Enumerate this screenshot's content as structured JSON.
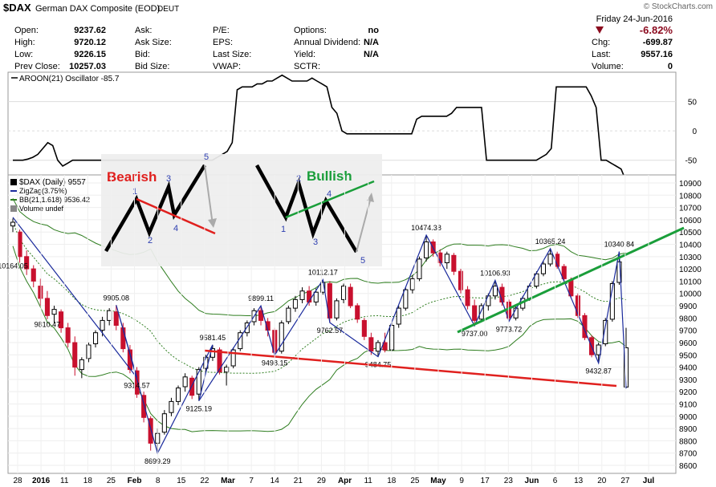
{
  "header": {
    "symbol": "$DAX",
    "name": "German DAX Composite (EOD)",
    "exchange": "DEUT",
    "watermark": "© StockCharts.com",
    "date": "Friday 24-Jun-2016",
    "change_pct": "-6.82%",
    "chg_label": "Chg:",
    "chg_value": "-699.87",
    "last_label": "Last:",
    "last_value": "9557.16",
    "volume_label": "Volume:",
    "volume_value": "0",
    "down_color": "#8b0a1e"
  },
  "quote_fields": [
    {
      "label": "Open:",
      "value": "9237.62"
    },
    {
      "label": "High:",
      "value": "9720.12"
    },
    {
      "label": "Low:",
      "value": "9226.15"
    },
    {
      "label": "Prev Close:",
      "value": "10257.03"
    }
  ],
  "quote_fields_2": [
    {
      "label": "Ask:",
      "value": ""
    },
    {
      "label": "Ask Size:",
      "value": ""
    },
    {
      "label": "Bid:",
      "value": ""
    },
    {
      "label": "Bid Size:",
      "value": ""
    }
  ],
  "quote_fields_3": [
    {
      "label": "P/E:",
      "value": ""
    },
    {
      "label": "EPS:",
      "value": ""
    },
    {
      "label": "Last Size:",
      "value": ""
    },
    {
      "label": "VWAP:",
      "value": ""
    }
  ],
  "quote_fields_4": [
    {
      "label": "Options:",
      "value": "no"
    },
    {
      "label": "Annual Dividend:",
      "value": "N/A"
    },
    {
      "label": "Yield:",
      "value": "N/A"
    },
    {
      "label": "SCTR:",
      "value": ""
    }
  ],
  "chart_data": [
    {
      "type": "line",
      "title": "AROON(21) Oscillator -85.7",
      "ylim": [
        -75,
        100
      ],
      "y_ticks": [
        50,
        0,
        -50
      ],
      "line_color": "#000000",
      "values": [
        -50,
        -50,
        -50,
        -48,
        -45,
        -40,
        -30,
        -20,
        -25,
        -50,
        -60,
        -55,
        -50,
        -50,
        -50,
        -50,
        -50,
        -50,
        -50,
        -50,
        -50,
        -50,
        -50,
        -50,
        -50,
        -50,
        -50,
        -50,
        -50,
        -50,
        -50,
        -50,
        -50,
        -50,
        -50,
        -50,
        -50,
        -50,
        -50,
        -50,
        -50,
        -45,
        -40,
        -35,
        -20,
        70,
        75,
        75,
        75,
        80,
        80,
        85,
        85,
        90,
        95,
        90,
        85,
        85,
        85,
        85,
        90,
        85,
        80,
        75,
        40,
        30,
        0,
        -5,
        -5,
        -5,
        -5,
        -5,
        -5,
        -5,
        -5,
        -5,
        -5,
        -5,
        -5,
        -5,
        -5,
        20,
        25,
        25,
        25,
        25,
        25,
        25,
        30,
        40,
        40,
        40,
        40,
        40,
        40,
        -50,
        -50,
        -50,
        -50,
        -50,
        -50,
        -50,
        -50,
        -50,
        -50,
        -50,
        -45,
        -40,
        -30,
        75,
        75,
        75,
        75,
        75,
        75,
        75,
        60,
        40,
        -50,
        -50,
        -55,
        -60,
        -65,
        -85.7
      ]
    },
    {
      "type": "candlestick",
      "title": "$DAX (Daily) 9557",
      "legend": [
        "ZigZag(3.75%)",
        "BB(21,1.618) 9536.42",
        "Volume undef"
      ],
      "ylim": [
        8600,
        10900
      ],
      "y_ticks": [
        8600,
        8700,
        8800,
        8900,
        9000,
        9100,
        9200,
        9300,
        9400,
        9500,
        9600,
        9700,
        9800,
        9900,
        10000,
        10100,
        10200,
        10300,
        10400,
        10500,
        10600,
        10700,
        10800,
        10900
      ],
      "x_ticks": [
        "28",
        "2016",
        "11",
        "18",
        "25",
        "Feb",
        "8",
        "15",
        "22",
        "Mar",
        "7",
        "14",
        "21",
        "29",
        "Apr",
        "11",
        "18",
        "25",
        "May",
        "9",
        "17",
        "23",
        "Jun",
        "6",
        "13",
        "20",
        "27",
        "Jul"
      ],
      "up_color": "#000000",
      "down_color": "#c8102e",
      "candles": [
        {
          "o": 10550,
          "h": 10610,
          "l": 10500,
          "c": 10580
        },
        {
          "o": 10500,
          "h": 10520,
          "l": 10250,
          "c": 10300
        },
        {
          "o": 10300,
          "h": 10350,
          "l": 10150,
          "c": 10200
        },
        {
          "o": 10200,
          "h": 10230,
          "l": 10050,
          "c": 10100
        },
        {
          "o": 10060,
          "h": 10120,
          "l": 9900,
          "c": 9960
        },
        {
          "o": 9960,
          "h": 10020,
          "l": 9790,
          "c": 9820
        },
        {
          "o": 9830,
          "h": 9900,
          "l": 9760,
          "c": 9870
        },
        {
          "o": 9850,
          "h": 9870,
          "l": 9680,
          "c": 9720
        },
        {
          "o": 9720,
          "h": 9760,
          "l": 9560,
          "c": 9600
        },
        {
          "o": 9600,
          "h": 9650,
          "l": 9330,
          "c": 9400
        },
        {
          "o": 9380,
          "h": 9480,
          "l": 9310,
          "c": 9460
        },
        {
          "o": 9470,
          "h": 9600,
          "l": 9440,
          "c": 9580
        },
        {
          "o": 9590,
          "h": 9700,
          "l": 9560,
          "c": 9680
        },
        {
          "o": 9700,
          "h": 9810,
          "l": 9650,
          "c": 9780
        },
        {
          "o": 9780,
          "h": 9880,
          "l": 9740,
          "c": 9860
        },
        {
          "o": 9850,
          "h": 9905,
          "l": 9700,
          "c": 9740
        },
        {
          "o": 9720,
          "h": 9760,
          "l": 9520,
          "c": 9550
        },
        {
          "o": 9540,
          "h": 9580,
          "l": 9350,
          "c": 9380
        },
        {
          "o": 9370,
          "h": 9400,
          "l": 9150,
          "c": 9180
        },
        {
          "o": 9170,
          "h": 9200,
          "l": 8950,
          "c": 8990
        },
        {
          "o": 8980,
          "h": 9000,
          "l": 8720,
          "c": 8780
        },
        {
          "o": 8780,
          "h": 8900,
          "l": 8699,
          "c": 8860
        },
        {
          "o": 8870,
          "h": 9050,
          "l": 8850,
          "c": 9020
        },
        {
          "o": 9030,
          "h": 9150,
          "l": 9000,
          "c": 9120
        },
        {
          "o": 9120,
          "h": 9250,
          "l": 9090,
          "c": 9230
        },
        {
          "o": 9240,
          "h": 9350,
          "l": 9200,
          "c": 9320
        },
        {
          "o": 9310,
          "h": 9330,
          "l": 9140,
          "c": 9170
        },
        {
          "o": 9180,
          "h": 9400,
          "l": 9125,
          "c": 9380
        },
        {
          "o": 9390,
          "h": 9500,
          "l": 9360,
          "c": 9480
        },
        {
          "o": 9480,
          "h": 9581,
          "l": 9450,
          "c": 9550
        },
        {
          "o": 9540,
          "h": 9560,
          "l": 9340,
          "c": 9360
        },
        {
          "o": 9360,
          "h": 9420,
          "l": 9250,
          "c": 9400
        },
        {
          "o": 9410,
          "h": 9560,
          "l": 9390,
          "c": 9540
        },
        {
          "o": 9550,
          "h": 9700,
          "l": 9530,
          "c": 9680
        },
        {
          "o": 9680,
          "h": 9780,
          "l": 9650,
          "c": 9760
        },
        {
          "o": 9770,
          "h": 9880,
          "l": 9740,
          "c": 9860
        },
        {
          "o": 9860,
          "h": 9899,
          "l": 9740,
          "c": 9780
        },
        {
          "o": 9770,
          "h": 9800,
          "l": 9650,
          "c": 9700
        },
        {
          "o": 9700,
          "h": 9720,
          "l": 9498,
          "c": 9520
        },
        {
          "o": 9530,
          "h": 9780,
          "l": 9510,
          "c": 9760
        },
        {
          "o": 9770,
          "h": 9900,
          "l": 9750,
          "c": 9880
        },
        {
          "o": 9880,
          "h": 9980,
          "l": 9850,
          "c": 9950
        },
        {
          "o": 9950,
          "h": 10050,
          "l": 9920,
          "c": 10020
        },
        {
          "o": 10020,
          "h": 10060,
          "l": 9900,
          "c": 9930
        },
        {
          "o": 9930,
          "h": 10040,
          "l": 9900,
          "c": 10010
        },
        {
          "o": 10010,
          "h": 10112,
          "l": 9990,
          "c": 10090
        },
        {
          "o": 10080,
          "h": 10100,
          "l": 9763,
          "c": 9800
        },
        {
          "o": 9800,
          "h": 9960,
          "l": 9780,
          "c": 9940
        },
        {
          "o": 9950,
          "h": 10080,
          "l": 9920,
          "c": 10060
        },
        {
          "o": 10050,
          "h": 10080,
          "l": 9880,
          "c": 9900
        },
        {
          "o": 9900,
          "h": 9920,
          "l": 9760,
          "c": 9790
        },
        {
          "o": 9780,
          "h": 9800,
          "l": 9620,
          "c": 9650
        },
        {
          "o": 9640,
          "h": 9680,
          "l": 9500,
          "c": 9530
        },
        {
          "o": 9530,
          "h": 9620,
          "l": 9485,
          "c": 9600
        },
        {
          "o": 9600,
          "h": 9680,
          "l": 9520,
          "c": 9540
        },
        {
          "o": 9540,
          "h": 9760,
          "l": 9530,
          "c": 9740
        },
        {
          "o": 9750,
          "h": 9900,
          "l": 9720,
          "c": 9880
        },
        {
          "o": 9880,
          "h": 10050,
          "l": 9860,
          "c": 10030
        },
        {
          "o": 10030,
          "h": 10150,
          "l": 10000,
          "c": 10120
        },
        {
          "o": 10120,
          "h": 10300,
          "l": 10100,
          "c": 10280
        },
        {
          "o": 10290,
          "h": 10474,
          "l": 10260,
          "c": 10420
        },
        {
          "o": 10420,
          "h": 10440,
          "l": 10300,
          "c": 10330
        },
        {
          "o": 10330,
          "h": 10360,
          "l": 10220,
          "c": 10250
        },
        {
          "o": 10250,
          "h": 10340,
          "l": 10200,
          "c": 10320
        },
        {
          "o": 10310,
          "h": 10330,
          "l": 10150,
          "c": 10180
        },
        {
          "o": 10180,
          "h": 10200,
          "l": 10000,
          "c": 10030
        },
        {
          "o": 10030,
          "h": 10060,
          "l": 9870,
          "c": 9900
        },
        {
          "o": 9900,
          "h": 9950,
          "l": 9737,
          "c": 9780
        },
        {
          "o": 9790,
          "h": 9920,
          "l": 9770,
          "c": 9900
        },
        {
          "o": 9900,
          "h": 10000,
          "l": 9860,
          "c": 9980
        },
        {
          "o": 9980,
          "h": 10107,
          "l": 9950,
          "c": 10060
        },
        {
          "o": 10050,
          "h": 10080,
          "l": 9900,
          "c": 9930
        },
        {
          "o": 9930,
          "h": 9950,
          "l": 9774,
          "c": 9800
        },
        {
          "o": 9800,
          "h": 9900,
          "l": 9780,
          "c": 9880
        },
        {
          "o": 9880,
          "h": 9980,
          "l": 9860,
          "c": 9960
        },
        {
          "o": 9960,
          "h": 10080,
          "l": 9940,
          "c": 10060
        },
        {
          "o": 10060,
          "h": 10180,
          "l": 10040,
          "c": 10160
        },
        {
          "o": 10160,
          "h": 10260,
          "l": 10140,
          "c": 10240
        },
        {
          "o": 10240,
          "h": 10365,
          "l": 10220,
          "c": 10320
        },
        {
          "o": 10320,
          "h": 10340,
          "l": 10200,
          "c": 10220
        },
        {
          "o": 10220,
          "h": 10240,
          "l": 10100,
          "c": 10120
        },
        {
          "o": 10110,
          "h": 10130,
          "l": 9960,
          "c": 9980
        },
        {
          "o": 9980,
          "h": 10000,
          "l": 9800,
          "c": 9820
        },
        {
          "o": 9820,
          "h": 9840,
          "l": 9620,
          "c": 9640
        },
        {
          "o": 9640,
          "h": 9660,
          "l": 9480,
          "c": 9500
        },
        {
          "o": 9500,
          "h": 9600,
          "l": 9433,
          "c": 9580
        },
        {
          "o": 9590,
          "h": 9800,
          "l": 9570,
          "c": 9780
        },
        {
          "o": 9790,
          "h": 10100,
          "l": 9770,
          "c": 10080
        },
        {
          "o": 10090,
          "h": 10341,
          "l": 10070,
          "c": 10257
        },
        {
          "o": 9237.62,
          "h": 9720.12,
          "l": 9226.15,
          "c": 9557.16
        }
      ],
      "zigzag": [
        [
          0,
          10620
        ],
        [
          18,
          9314.57
        ],
        [
          15,
          9905.08
        ],
        [
          21,
          8699.29
        ],
        [
          29,
          9581.45
        ],
        [
          27,
          9125.19
        ],
        [
          36,
          9899.11
        ],
        [
          38,
          9498.15
        ],
        [
          45,
          10112.17
        ],
        [
          46,
          9762.57
        ],
        [
          53,
          9484.75
        ],
        [
          60,
          10474.38
        ],
        [
          67,
          9737.0
        ],
        [
          70,
          10106.93
        ],
        [
          72,
          9773.72
        ],
        [
          78,
          10365.24
        ],
        [
          85,
          9432.87
        ],
        [
          88,
          10340.84
        ],
        [
          89,
          9226.15
        ]
      ],
      "annotations": [
        {
          "text": "10164.05",
          "v": 10164.05
        },
        {
          "text": "9810.47",
          "v": 9810.47
        },
        {
          "text": "9905.08",
          "v": 9905.08
        },
        {
          "text": "9314.57",
          "v": 9314.57
        },
        {
          "text": "8699.29",
          "v": 8699.29
        },
        {
          "text": "9581.45",
          "v": 9581.45
        },
        {
          "text": "9125.19",
          "v": 9125.19
        },
        {
          "text": "9899.11",
          "v": 9899.11
        },
        {
          "text": "9498.15",
          "v": 9498.15
        },
        {
          "text": "10112.17",
          "v": 10112.17
        },
        {
          "text": "9762.57",
          "v": 9762.57
        },
        {
          "text": "9484.75",
          "v": 9484.75
        },
        {
          "text": "10474.38",
          "v": 10474.38
        },
        {
          "text": "9737.00",
          "v": 9737.0
        },
        {
          "text": "10106.93",
          "v": 10106.93
        },
        {
          "text": "9773.72",
          "v": 9773.72
        },
        {
          "text": "10365.24",
          "v": 10365.24
        },
        {
          "text": "9432.87",
          "v": 9432.87
        },
        {
          "text": "10340.84",
          "v": 10340.84
        }
      ]
    }
  ],
  "overlay": {
    "bearish_label": "Bearish",
    "bullish_label": "Bullish",
    "bearish_color": "#e0201e",
    "bullish_color": "#1a9e3a",
    "wave_numbers": [
      "1",
      "2",
      "3",
      "4",
      "5"
    ]
  }
}
